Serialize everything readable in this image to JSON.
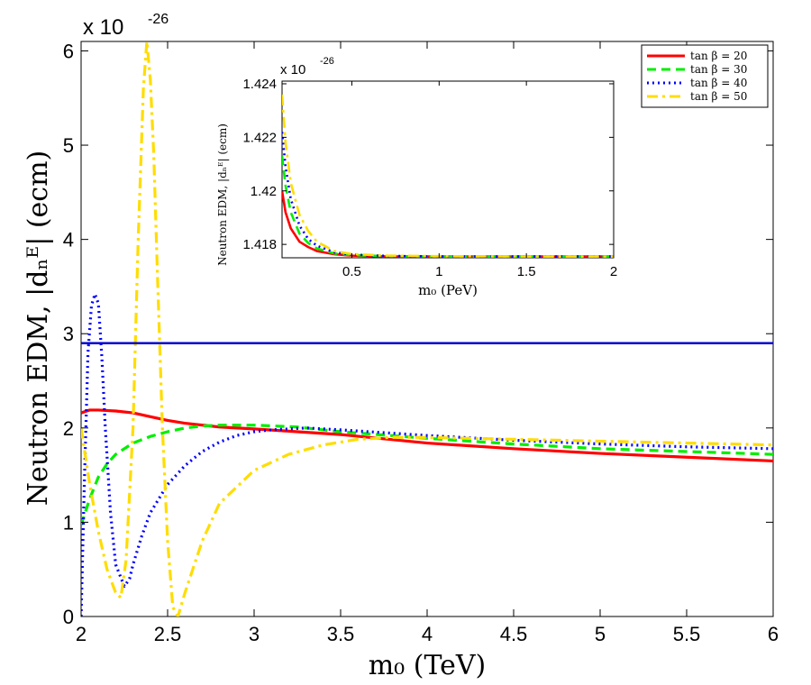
{
  "chart_data": [
    {
      "type": "line",
      "xlabel": "m₀ (TeV)",
      "ylabel": "Neutron EDM, |dₙᴱ| (ecm)",
      "y_exponent": "x 10",
      "y_exponent_power": "-26",
      "xlim": [
        2,
        6
      ],
      "ylim": [
        0,
        6.1
      ],
      "x_ticks": [
        "2",
        "2.5",
        "3",
        "3.5",
        "4",
        "4.5",
        "5",
        "5.5",
        "6"
      ],
      "y_ticks": [
        "0",
        "1",
        "2",
        "3",
        "4",
        "5",
        "6"
      ],
      "grid": false,
      "legend_position": "top-right",
      "series": [
        {
          "name": "tan β = 20",
          "color": "#ff0000",
          "dash": "solid",
          "x": [
            2.0,
            2.05,
            2.1,
            2.2,
            2.3,
            2.4,
            2.5,
            2.6,
            2.8,
            3.0,
            3.25,
            3.5,
            4.0,
            4.5,
            5.0,
            5.5,
            6.0
          ],
          "y": [
            2.16,
            2.19,
            2.19,
            2.18,
            2.16,
            2.12,
            2.08,
            2.05,
            2.01,
            1.99,
            1.96,
            1.93,
            1.84,
            1.78,
            1.73,
            1.69,
            1.65
          ]
        },
        {
          "name": "tan β = 30",
          "color": "#00ee00",
          "dash": "dashed",
          "x": [
            2.0,
            2.05,
            2.1,
            2.15,
            2.2,
            2.3,
            2.4,
            2.5,
            2.6,
            2.7,
            2.8,
            2.9,
            3.0,
            3.25,
            3.5,
            4.0,
            4.5,
            5.0,
            5.5,
            6.0
          ],
          "y": [
            0.97,
            1.25,
            1.48,
            1.62,
            1.72,
            1.84,
            1.91,
            1.96,
            2.0,
            2.02,
            2.03,
            2.03,
            2.03,
            2.01,
            1.96,
            1.89,
            1.83,
            1.78,
            1.75,
            1.72
          ]
        },
        {
          "name": "tan β = 40",
          "color": "#0000ff",
          "dash": "dotted",
          "x": [
            2.0,
            2.02,
            2.04,
            2.06,
            2.08,
            2.1,
            2.12,
            2.14,
            2.17,
            2.2,
            2.25,
            2.28,
            2.3,
            2.35,
            2.4,
            2.5,
            2.6,
            2.7,
            2.8,
            2.9,
            3.0,
            3.1,
            3.2,
            3.3,
            3.5,
            4.0,
            4.5,
            5.0,
            5.5,
            6.0
          ],
          "y": [
            0.0,
            1.5,
            2.8,
            3.3,
            3.42,
            3.32,
            2.75,
            2.0,
            1.1,
            0.55,
            0.32,
            0.4,
            0.55,
            0.85,
            1.1,
            1.4,
            1.6,
            1.75,
            1.85,
            1.92,
            1.96,
            1.98,
            1.99,
            2.0,
            1.98,
            1.92,
            1.87,
            1.83,
            1.8,
            1.78
          ]
        },
        {
          "name": "tan β = 50",
          "color": "#ffdd00",
          "dash": "dashdot",
          "x": [
            2.0,
            2.05,
            2.1,
            2.15,
            2.2,
            2.23,
            2.26,
            2.3,
            2.33,
            2.36,
            2.38,
            2.4,
            2.42,
            2.44,
            2.47,
            2.5,
            2.53,
            2.56,
            2.6,
            2.7,
            2.8,
            3.0,
            3.2,
            3.4,
            3.6,
            3.8,
            4.0,
            4.5,
            5.0,
            5.5,
            6.0
          ],
          "y": [
            2.0,
            1.4,
            0.9,
            0.5,
            0.25,
            0.2,
            0.6,
            2.0,
            4.0,
            5.6,
            6.1,
            5.7,
            4.9,
            3.7,
            2.0,
            0.8,
            0.1,
            0.0,
            0.25,
            0.8,
            1.2,
            1.55,
            1.72,
            1.82,
            1.88,
            1.9,
            1.9,
            1.88,
            1.86,
            1.84,
            1.82
          ]
        },
        {
          "name": "",
          "color": "#0000cc",
          "dash": "solid",
          "x": [
            2.0,
            6.0
          ],
          "y": [
            2.9,
            2.9
          ]
        }
      ]
    },
    {
      "type": "line",
      "xlabel": "m₀ (PeV)",
      "ylabel": "Neutron EDM, |dₙᴱ| (ecm)",
      "y_exponent": "x 10",
      "y_exponent_power": "-26",
      "xlim": [
        0.1,
        2
      ],
      "ylim": [
        1.4175,
        1.4241
      ],
      "x_ticks": [
        "0.5",
        "1",
        "1.5",
        "2"
      ],
      "y_ticks": [
        "1.418",
        "1.42",
        "1.422",
        "1.424"
      ],
      "grid": false,
      "series": [
        {
          "name": "tan β = 20",
          "color": "#ff0000",
          "dash": "solid",
          "x": [
            0.1,
            0.12,
            0.15,
            0.2,
            0.25,
            0.3,
            0.4,
            0.5,
            0.7,
            1.0,
            1.5,
            2.0
          ],
          "y": [
            1.42,
            1.4192,
            1.4186,
            1.4181,
            1.4179,
            1.41775,
            1.41763,
            1.41758,
            1.41755,
            1.41755,
            1.41755,
            1.41755
          ]
        },
        {
          "name": "tan β = 30",
          "color": "#00ee00",
          "dash": "dashed",
          "x": [
            0.1,
            0.12,
            0.15,
            0.2,
            0.25,
            0.3,
            0.4,
            0.5,
            0.7,
            1.0,
            1.5,
            2.0
          ],
          "y": [
            1.4213,
            1.4202,
            1.4192,
            1.4184,
            1.41805,
            1.41785,
            1.41766,
            1.4176,
            1.41756,
            1.41755,
            1.41755,
            1.41755
          ]
        },
        {
          "name": "tan β = 40",
          "color": "#0000ff",
          "dash": "dotted",
          "x": [
            0.1,
            0.12,
            0.15,
            0.2,
            0.25,
            0.3,
            0.4,
            0.5,
            0.7,
            1.0,
            1.5,
            2.0
          ],
          "y": [
            1.4222,
            1.4209,
            1.4197,
            1.4187,
            1.4182,
            1.41795,
            1.4177,
            1.41762,
            1.41757,
            1.41755,
            1.41755,
            1.41755
          ]
        },
        {
          "name": "tan β = 50",
          "color": "#ffdd00",
          "dash": "dashdot",
          "x": [
            0.1,
            0.12,
            0.15,
            0.2,
            0.25,
            0.3,
            0.4,
            0.5,
            0.7,
            1.0,
            1.5,
            2.0
          ],
          "y": [
            1.4236,
            1.4218,
            1.4203,
            1.4191,
            1.4185,
            1.4181,
            1.41775,
            1.41764,
            1.41758,
            1.41756,
            1.41755,
            1.41755
          ]
        }
      ]
    }
  ]
}
